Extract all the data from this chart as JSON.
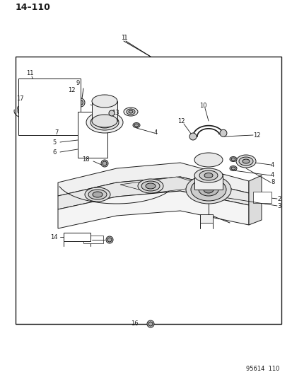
{
  "page_label": "14–110",
  "fig_label": "95614  110",
  "bg": "#ffffff",
  "lc": "#1a1a1a",
  "figsize": [
    4.14,
    5.33
  ],
  "dpi": 100
}
